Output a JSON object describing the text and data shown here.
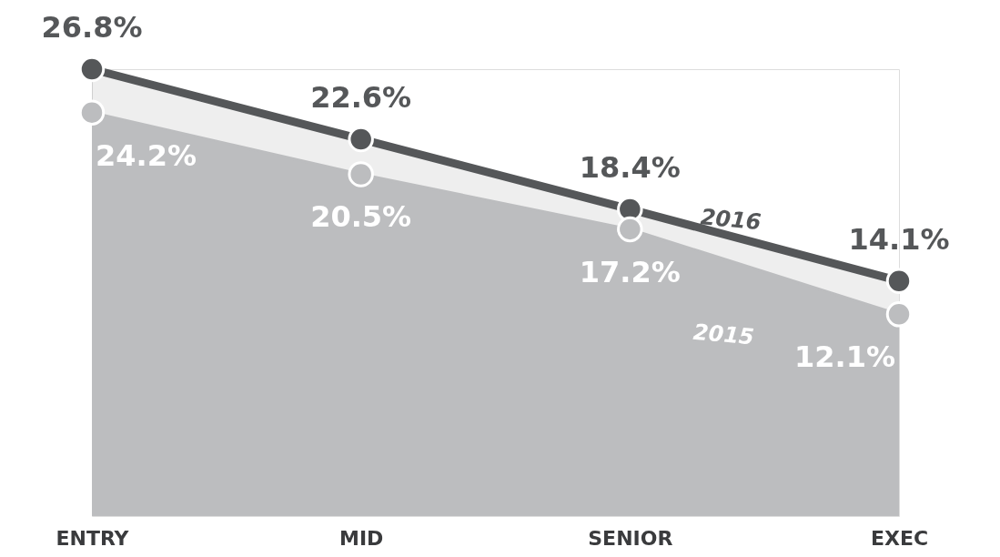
{
  "chart_data": {
    "type": "area",
    "categories": [
      "ENTRY",
      "MID",
      "SENIOR",
      "EXEC"
    ],
    "series": [
      {
        "name": "2016",
        "color": "#555759",
        "values": [
          26.8,
          22.6,
          18.4,
          14.1
        ],
        "value_labels": [
          "26.8%",
          "22.6%",
          "18.4%",
          "14.1%"
        ]
      },
      {
        "name": "2015",
        "color": "#bcbdbf",
        "values": [
          24.2,
          20.5,
          17.2,
          12.1
        ],
        "value_labels": [
          "24.2%",
          "20.5%",
          "17.2%",
          "12.1%"
        ]
      }
    ],
    "marker": "circle",
    "grid": false
  }
}
